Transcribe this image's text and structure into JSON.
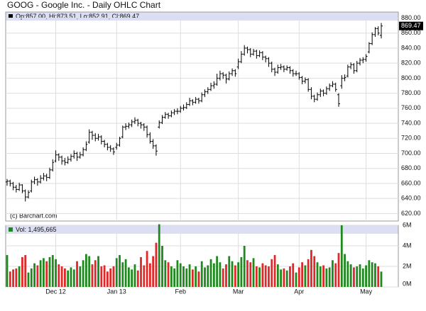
{
  "chart_data": {
    "type": "ohlc",
    "title": "GOOG - Google Inc. - Daily OHLC Chart",
    "header_label": "Op:857.00, Hi:873.51, Lo:852.91, Cl:869.47",
    "last_label": "869.47",
    "credit": "(c) Barchart.com",
    "color": "#000000",
    "categories": [
      null,
      null,
      null,
      null,
      null,
      null,
      null,
      null,
      null,
      null,
      null,
      null,
      null,
      null,
      null,
      null,
      "Dec 12",
      null,
      null,
      null,
      null,
      null,
      null,
      null,
      null,
      null,
      null,
      null,
      null,
      null,
      null,
      null,
      null,
      null,
      null,
      null,
      "Jan 13",
      null,
      null,
      null,
      null,
      null,
      null,
      null,
      null,
      null,
      null,
      null,
      null,
      null,
      null,
      null,
      null,
      null,
      null,
      null,
      null,
      "Feb",
      null,
      null,
      null,
      null,
      null,
      null,
      null,
      null,
      null,
      null,
      null,
      null,
      null,
      null,
      null,
      null,
      null,
      null,
      "Mar",
      null,
      null,
      null,
      null,
      null,
      null,
      null,
      null,
      null,
      null,
      null,
      null,
      null,
      null,
      null,
      null,
      null,
      null,
      null,
      "Apr",
      null,
      null,
      null,
      null,
      null,
      null,
      null,
      null,
      null,
      null,
      null,
      null,
      null,
      null,
      null,
      null,
      null,
      null,
      null,
      null,
      null,
      "May",
      null,
      null,
      null,
      null,
      null
    ],
    "open": [
      662,
      663,
      660,
      655,
      652,
      658,
      650,
      642,
      650,
      662,
      665,
      662,
      667,
      670,
      668,
      678,
      690,
      698,
      695,
      690,
      688,
      692,
      696,
      700,
      695,
      698,
      705,
      715,
      728,
      724,
      720,
      722,
      716,
      712,
      708,
      706,
      708,
      711,
      722,
      735,
      736,
      738,
      742,
      744,
      740,
      738,
      735,
      725,
      716,
      710,
      735,
      741,
      748,
      752,
      750,
      754,
      756,
      756,
      760,
      761,
      765,
      770,
      768,
      772,
      770,
      778,
      782,
      785,
      790,
      792,
      800,
      806,
      804,
      799,
      806,
      810,
      815,
      822,
      832,
      840,
      838,
      832,
      836,
      830,
      834,
      828,
      826,
      820,
      812,
      808,
      814,
      815,
      812,
      814,
      810,
      806,
      806,
      801,
      796,
      798,
      785,
      776,
      772,
      778,
      783,
      780,
      786,
      790,
      792,
      778,
      790,
      800,
      803,
      815,
      818,
      810,
      820,
      824,
      825,
      835,
      846,
      858,
      866,
      857
    ],
    "high": [
      666,
      665,
      662,
      658,
      661,
      659,
      652,
      651,
      665,
      669,
      667,
      671,
      674,
      673,
      681,
      692,
      704,
      700,
      697,
      694,
      696,
      699,
      704,
      702,
      702,
      708,
      716,
      732,
      730,
      727,
      726,
      724,
      718,
      714,
      711,
      708,
      714,
      722,
      737,
      740,
      741,
      745,
      748,
      746,
      742,
      740,
      737,
      728,
      719,
      712,
      744,
      751,
      755,
      754,
      757,
      759,
      760,
      763,
      765,
      768,
      774,
      772,
      775,
      774,
      781,
      785,
      788,
      794,
      796,
      806,
      810,
      808,
      806,
      809,
      813,
      812,
      826,
      836,
      844,
      842,
      840,
      839,
      838,
      837,
      836,
      830,
      828,
      822,
      814,
      818,
      819,
      817,
      817,
      816,
      812,
      810,
      808,
      803,
      801,
      800,
      788,
      778,
      781,
      786,
      785,
      789,
      793,
      796,
      794,
      780,
      804,
      805,
      818,
      821,
      820,
      823,
      827,
      828,
      832,
      848,
      861,
      868,
      869,
      873.51
    ],
    "low": [
      657,
      656,
      651,
      648,
      650,
      647,
      636,
      640,
      648,
      659,
      657,
      660,
      664,
      663,
      666,
      676,
      688,
      690,
      685,
      684,
      686,
      689,
      693,
      690,
      693,
      696,
      703,
      713,
      718,
      716,
      717,
      712,
      708,
      704,
      702,
      698,
      705,
      709,
      720,
      731,
      733,
      735,
      739,
      736,
      733,
      730,
      721,
      713,
      706,
      697,
      733,
      739,
      746,
      746,
      748,
      751,
      752,
      754,
      757,
      759,
      763,
      764,
      766,
      766,
      768,
      775,
      779,
      783,
      786,
      790,
      797,
      799,
      793,
      797,
      803,
      802,
      812,
      820,
      830,
      833,
      828,
      830,
      826,
      828,
      824,
      821,
      815,
      808,
      803,
      806,
      811,
      808,
      810,
      806,
      802,
      803,
      798,
      792,
      793,
      782,
      772,
      768,
      770,
      775,
      776,
      778,
      783,
      788,
      782,
      762,
      786,
      796,
      801,
      812,
      806,
      808,
      817,
      820,
      822,
      833,
      844,
      855,
      857,
      852.91
    ],
    "close": [
      663,
      660,
      655,
      652,
      658,
      650,
      642,
      648,
      662,
      665,
      662,
      667,
      670,
      668,
      678,
      688,
      698,
      695,
      690,
      688,
      692,
      696,
      700,
      695,
      698,
      705,
      712,
      728,
      724,
      720,
      722,
      716,
      712,
      708,
      706,
      702,
      711,
      720,
      735,
      736,
      738,
      742,
      744,
      740,
      738,
      735,
      725,
      716,
      710,
      703,
      741,
      748,
      752,
      750,
      754,
      756,
      756,
      760,
      761,
      765,
      770,
      768,
      772,
      770,
      778,
      782,
      785,
      790,
      792,
      800,
      806,
      804,
      799,
      806,
      810,
      806,
      822,
      832,
      840,
      838,
      832,
      836,
      830,
      834,
      828,
      826,
      820,
      812,
      808,
      814,
      815,
      812,
      814,
      810,
      806,
      806,
      801,
      796,
      798,
      785,
      776,
      772,
      778,
      783,
      780,
      786,
      790,
      792,
      785,
      766,
      800,
      801,
      815,
      818,
      810,
      820,
      824,
      825,
      829,
      846,
      858,
      866,
      860,
      869.47
    ],
    "ylim": [
      610,
      888
    ],
    "yticks": [
      {
        "value": 620,
        "label": "620.00"
      },
      {
        "value": 640,
        "label": "640.00"
      },
      {
        "value": 660,
        "label": "660.00"
      },
      {
        "value": 680,
        "label": "680.00"
      },
      {
        "value": 700,
        "label": "700.00"
      },
      {
        "value": 720,
        "label": "720.00"
      },
      {
        "value": 740,
        "label": "740.00"
      },
      {
        "value": 760,
        "label": "760.00"
      },
      {
        "value": 780,
        "label": "780.00"
      },
      {
        "value": 800,
        "label": "800.00"
      },
      {
        "value": 820,
        "label": "820.00"
      },
      {
        "value": 840,
        "label": "840.00"
      },
      {
        "value": 860,
        "label": "860.00"
      },
      {
        "value": 880,
        "label": "880.00"
      }
    ],
    "grid": true,
    "volume": {
      "label": "Vol: 1,495,665",
      "up_color": "#1e8a1e",
      "down_color": "#e02828",
      "values": [
        3100000,
        1500000,
        1700000,
        1800000,
        2000000,
        2900000,
        3100000,
        1400000,
        1800000,
        2300000,
        2100000,
        2600000,
        2800000,
        2500000,
        2900000,
        3100000,
        2700000,
        2200000,
        2000000,
        1800000,
        1600000,
        1900000,
        1700000,
        2500000,
        2000000,
        2600000,
        3200000,
        3000000,
        2200000,
        2600000,
        3000000,
        2000000,
        2100000,
        1500000,
        1800000,
        2000000,
        2800000,
        3100000,
        2400000,
        2700000,
        1900000,
        1700000,
        2200000,
        1600000,
        2900000,
        2100000,
        3500000,
        2300000,
        3000000,
        4300000,
        6100000,
        4000000,
        2600000,
        2400000,
        2000000,
        1800000,
        2600000,
        2300000,
        2000000,
        1800000,
        2200000,
        1700000,
        2000000,
        1500000,
        2500000,
        1900000,
        2100000,
        2700000,
        2300000,
        3000000,
        2400000,
        1800000,
        2200000,
        3000000,
        2500000,
        2100000,
        2400000,
        2900000,
        4000000,
        2600000,
        2400000,
        2800000,
        2000000,
        1900000,
        2300000,
        2100000,
        2000000,
        2700000,
        3100000,
        2200000,
        1700000,
        1800000,
        1600000,
        2000000,
        2300000,
        1400000,
        1900000,
        2400000,
        2100000,
        2700000,
        3600000,
        3000000,
        2400000,
        2000000,
        2100000,
        1800000,
        1900000,
        2600000,
        2300000,
        3300000,
        6000000,
        3200000,
        2500000,
        2200000,
        1900000,
        2000000,
        2200000,
        1800000,
        2100000,
        2600000,
        2400000,
        2300000,
        2000000,
        1495665
      ],
      "ylim": [
        0,
        6000000
      ],
      "yticks": [
        {
          "value": 0,
          "label": "0M"
        },
        {
          "value": 2000000,
          "label": "2M"
        },
        {
          "value": 4000000,
          "label": "4M"
        },
        {
          "value": 6000000,
          "label": "6M"
        }
      ]
    }
  }
}
